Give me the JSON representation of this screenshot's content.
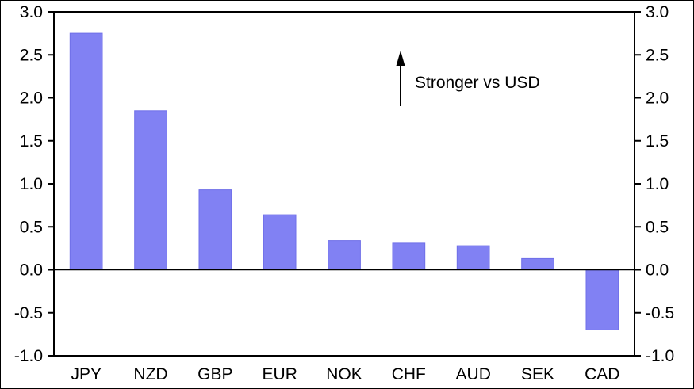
{
  "chart_data": {
    "type": "bar",
    "title": "",
    "xlabel": "",
    "ylabel": "",
    "categories": [
      "JPY",
      "NZD",
      "GBP",
      "EUR",
      "NOK",
      "CHF",
      "AUD",
      "SEK",
      "CAD"
    ],
    "values": [
      2.75,
      1.85,
      0.93,
      0.64,
      0.34,
      0.31,
      0.28,
      0.13,
      -0.7
    ],
    "ylim": [
      -1.0,
      3.0
    ],
    "ytick_values": [
      -1.0,
      -0.5,
      0.0,
      0.5,
      1.0,
      1.5,
      2.0,
      2.5,
      3.0
    ],
    "ytick_labels": [
      "-1.0",
      "-0.5",
      "0.0",
      "0.5",
      "1.0",
      "1.5",
      "2.0",
      "2.5",
      "3.0"
    ],
    "right_axis_mirror": true,
    "grid": false,
    "legend": "none",
    "bar_color": "#8181f3",
    "bar_edge_color": "#6f6fe8",
    "frame_color": "#000000",
    "background_color": "#ffffff",
    "annotation": {
      "text": "Stronger vs USD",
      "arrow_direction": "up"
    }
  }
}
